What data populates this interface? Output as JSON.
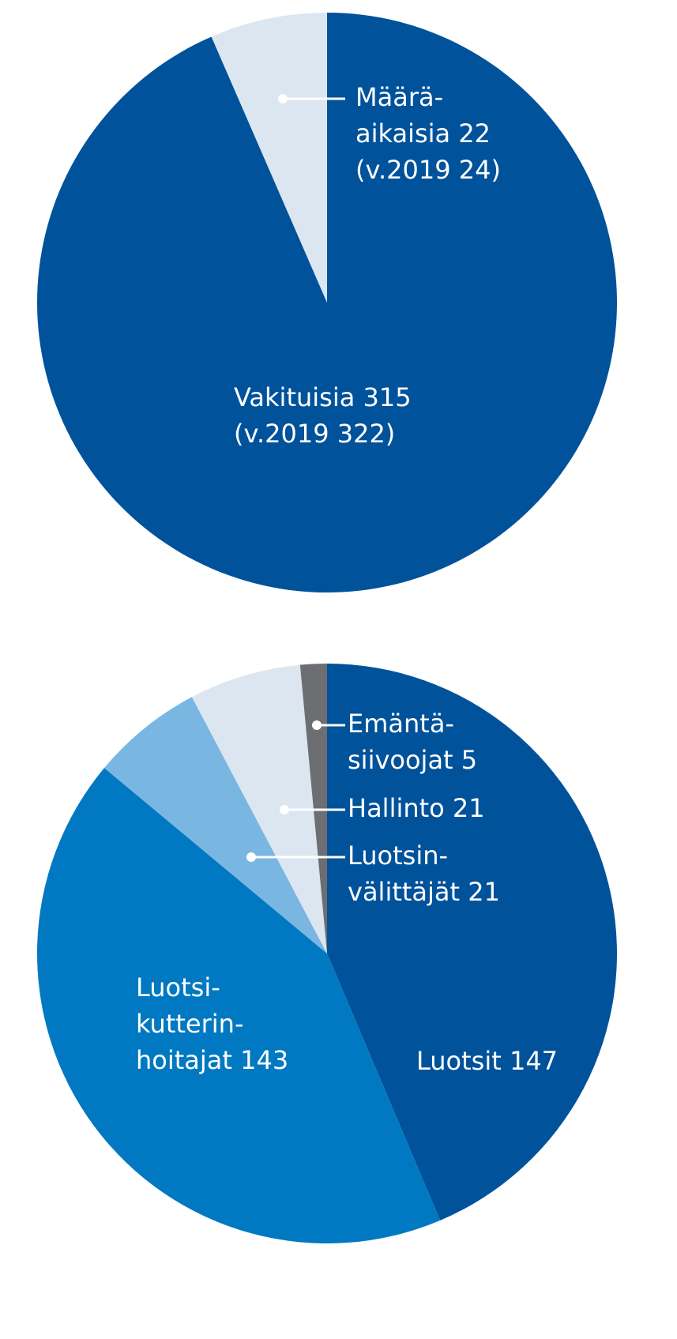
{
  "chart_data": [
    {
      "type": "pie",
      "values": [
        315,
        22
      ],
      "labels": [
        [
          "Vakituisia 315",
          "(v.2019 322)"
        ],
        [
          "Määrä-",
          "aikaisia 22",
          "(v.2019 24)"
        ]
      ],
      "colors": [
        "#00529b",
        "#dce6f0"
      ]
    },
    {
      "type": "pie",
      "values": [
        147,
        143,
        21,
        21,
        5
      ],
      "labels": [
        [
          "Luotsit 147"
        ],
        [
          "Luotsi-",
          "kutterin-",
          "hoitajat 143"
        ],
        [
          "Luotsin-",
          "välittäjät 21"
        ],
        [
          "Hallinto 21"
        ],
        [
          "Emäntä-",
          "siivoojat 5"
        ]
      ],
      "colors": [
        "#00529b",
        "#0079c2",
        "#7ab6e2",
        "#dce6f0",
        "#6d6e71"
      ]
    }
  ]
}
